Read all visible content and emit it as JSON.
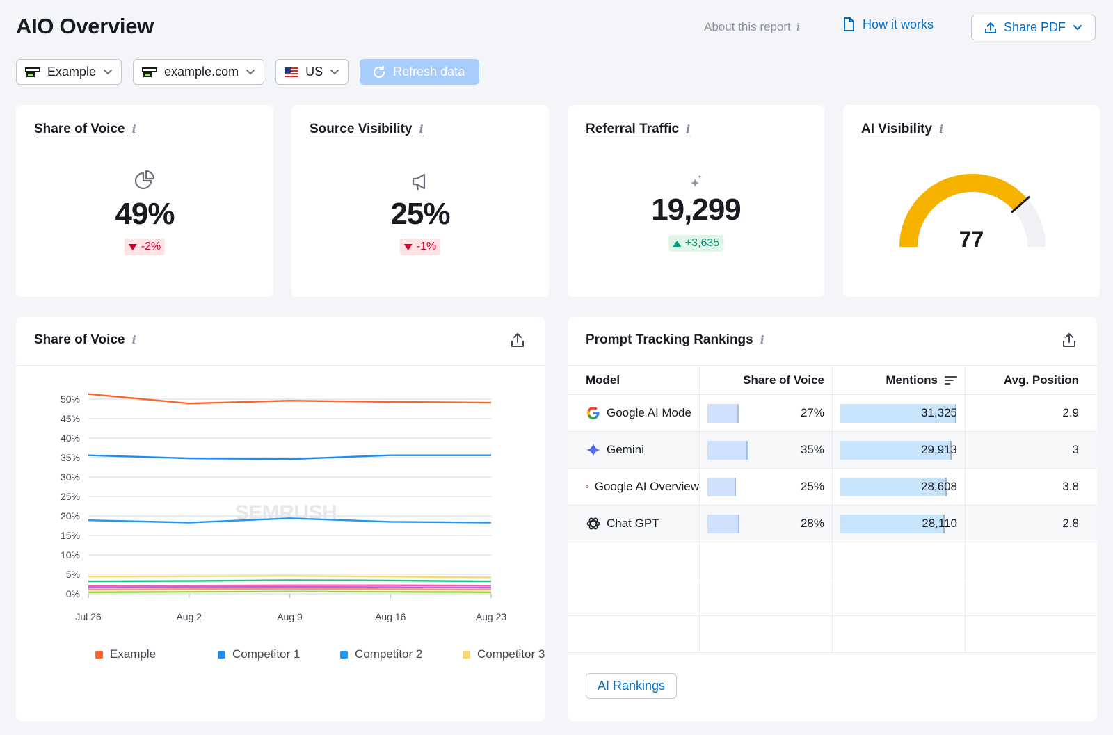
{
  "header": {
    "title": "AIO Overview",
    "about_label": "About this report",
    "how_label": "How it works",
    "share_label": "Share PDF"
  },
  "filters": {
    "project": "Example",
    "domain": "example.com",
    "country": "US",
    "refresh_label": "Refresh data"
  },
  "kpis": {
    "share_of_voice": {
      "title": "Share of Voice",
      "value": "49%",
      "delta": "-2%",
      "icon": "pie-chart-icon"
    },
    "source_visibility": {
      "title": "Source Visibility",
      "value": "25%",
      "delta": "-1%",
      "icon": "megaphone-icon"
    },
    "referral_traffic": {
      "title": "Referral Traffic",
      "value": "19,299",
      "delta": "+3,635",
      "icon": "sparkle-icon"
    },
    "ai_visibility": {
      "title": "AI Visibility",
      "value": "77",
      "gauge_fraction": 0.77
    }
  },
  "sov_panel": {
    "title": "Share of Voice",
    "watermark": "SEMRUSH",
    "chart_data": {
      "type": "line",
      "x": [
        "Jul 26",
        "Aug 2",
        "Aug 9",
        "Aug 16",
        "Aug 23"
      ],
      "ylim": [
        0,
        50
      ],
      "yticks": [
        "0%",
        "5%",
        "10%",
        "15%",
        "20%",
        "25%",
        "30%",
        "35%",
        "40%",
        "45%",
        "50%"
      ],
      "grid": true,
      "legend_position": "bottom",
      "series": [
        {
          "name": "Example",
          "color": "#ff642d",
          "values": [
            51.3,
            48.9,
            49.6,
            49.3,
            49.1
          ]
        },
        {
          "name": "Competitor 1",
          "color": "#1e8cf0",
          "values": [
            35.6,
            34.8,
            34.6,
            35.6,
            35.6
          ]
        },
        {
          "name": "Competitor 2",
          "color": "#2196f3",
          "values": [
            18.9,
            18.3,
            19.4,
            18.5,
            18.3
          ]
        },
        {
          "name": "Competitor 3",
          "color": "#f9d86d",
          "values": [
            4.4,
            4.5,
            4.6,
            4.4,
            4.2
          ]
        },
        {
          "values": [
            3.2,
            3.3,
            3.5,
            3.4,
            3.2
          ],
          "color": "#1ec28b"
        },
        {
          "values": [
            2.0,
            2.1,
            2.2,
            2.2,
            2.1
          ],
          "color": "#f45bae"
        },
        {
          "values": [
            1.6,
            1.7,
            1.8,
            1.7,
            1.6
          ],
          "color": "#a56cf0"
        },
        {
          "values": [
            1.1,
            1.2,
            1.3,
            1.2,
            1.1
          ],
          "color": "#ff8f6b"
        },
        {
          "values": [
            0.4,
            0.5,
            0.6,
            0.5,
            0.4
          ],
          "color": "#9bd14c"
        }
      ]
    },
    "legend_labels": [
      "Example",
      "Competitor 1",
      "Competitor 2",
      "Competitor 3"
    ]
  },
  "ptr_panel": {
    "title": "Prompt Tracking Rankings",
    "columns": [
      "Model",
      "Share of Voice",
      "Mentions",
      "Avg. Position"
    ],
    "rows": [
      {
        "model": "Google AI Mode",
        "icon": "google-icon",
        "sov": "27%",
        "sov_value": 27,
        "mentions": "31,325",
        "mentions_value": 31325,
        "avg": "2.9"
      },
      {
        "model": "Gemini",
        "icon": "gemini-icon",
        "sov": "35%",
        "sov_value": 35,
        "mentions": "29,913",
        "mentions_value": 29913,
        "avg": "3"
      },
      {
        "model": "Google AI Overview",
        "icon": "google-icon",
        "sov": "25%",
        "sov_value": 25,
        "mentions": "28,608",
        "mentions_value": 28608,
        "avg": "3.8"
      },
      {
        "model": "Chat GPT",
        "icon": "chatgpt-icon",
        "sov": "28%",
        "sov_value": 28,
        "mentions": "28,110",
        "mentions_value": 28110,
        "avg": "2.8"
      }
    ],
    "button_label": "AI Rankings"
  },
  "colors": {
    "accent": "#006dca",
    "gauge": "#f5b300",
    "down": "#d1002f",
    "up": "#009f81"
  }
}
